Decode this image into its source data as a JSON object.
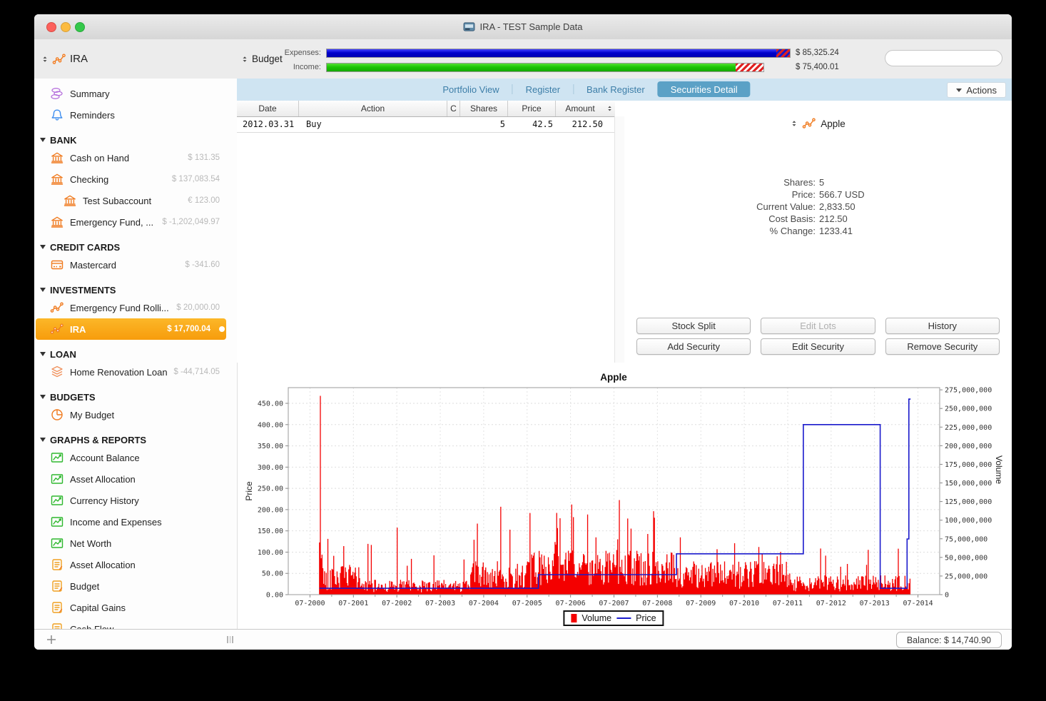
{
  "window": {
    "title": "IRA - TEST Sample Data"
  },
  "colors": {
    "selection_orange": "#f9a31a",
    "tab_selected_blue": "#5ba1c6",
    "chart_volume": "#f40000",
    "chart_price": "#1a1acc",
    "expenses_bar_blue": "#0000cc",
    "income_bar_green": "#1cc505"
  },
  "toolbar": {
    "account_label": "IRA",
    "budget_label": "Budget",
    "expenses_label": "Expenses:",
    "expenses_value": "$ 85,325.24",
    "income_label": "Income:",
    "income_value": "$ 75,400.01"
  },
  "sidebar": {
    "top_items": [
      {
        "label": "Summary",
        "icon": "coins-icon"
      },
      {
        "label": "Reminders",
        "icon": "bell-icon"
      }
    ],
    "sections": [
      {
        "title": "BANK",
        "items": [
          {
            "label": "Cash on Hand",
            "value": "$ 131.35",
            "icon": "bank-icon"
          },
          {
            "label": "Checking",
            "value": "$ 137,083.54",
            "icon": "bank-icon"
          },
          {
            "label": "Test Subaccount",
            "value": "€ 123.00",
            "icon": "bank-icon",
            "indent": true
          },
          {
            "label": "Emergency Fund, ...",
            "value": "$ -1,202,049.97",
            "icon": "bank-icon"
          }
        ]
      },
      {
        "title": "CREDIT CARDS",
        "items": [
          {
            "label": "Mastercard",
            "value": "$ -341.60",
            "icon": "credit-card-icon"
          }
        ]
      },
      {
        "title": "INVESTMENTS",
        "items": [
          {
            "label": "Emergency Fund Rolli...",
            "value": "$ 20,000.00",
            "icon": "investment-chart-icon"
          },
          {
            "label": "IRA",
            "value": "$ 17,700.04",
            "icon": "investment-chart-icon",
            "selected": true
          }
        ]
      },
      {
        "title": "LOAN",
        "items": [
          {
            "label": "Home Renovation Loan",
            "value": "$ -44,714.05",
            "icon": "layers-icon"
          }
        ]
      },
      {
        "title": "BUDGETS",
        "items": [
          {
            "label": "My Budget",
            "value": "",
            "icon": "pie-icon"
          }
        ]
      },
      {
        "title": "GRAPHS & REPORTS",
        "items": [
          {
            "label": "Account Balance",
            "icon": "graph-icon"
          },
          {
            "label": "Asset Allocation",
            "icon": "graph-icon"
          },
          {
            "label": "Currency History",
            "icon": "graph-icon"
          },
          {
            "label": "Income and Expenses",
            "icon": "graph-icon"
          },
          {
            "label": "Net Worth",
            "icon": "graph-icon"
          },
          {
            "label": "Asset Allocation",
            "icon": "report-icon"
          },
          {
            "label": "Budget",
            "icon": "report-icon"
          },
          {
            "label": "Capital Gains",
            "icon": "report-icon"
          },
          {
            "label": "Cash Flow",
            "icon": "report-icon",
            "clipped": true
          }
        ]
      }
    ]
  },
  "tabs": {
    "items": [
      "Portfolio View",
      "Register",
      "Bank Register",
      "Securities Detail"
    ],
    "selected": "Securities Detail",
    "actions_label": "Actions"
  },
  "table": {
    "columns": [
      "Date",
      "Action",
      "C",
      "Shares",
      "Price",
      "Amount"
    ],
    "rows": [
      {
        "date": "2012.03.31",
        "action": "Buy",
        "c": "",
        "shares": "5",
        "price": "42.5",
        "amount": "212.50"
      }
    ]
  },
  "security": {
    "name": "Apple",
    "details": [
      {
        "label": "Shares:",
        "value": "5"
      },
      {
        "label": "Price:",
        "value": "566.7 USD"
      },
      {
        "label": "Current Value:",
        "value": "2,833.50"
      },
      {
        "label": "Cost Basis:",
        "value": "212.50"
      },
      {
        "label": "% Change:",
        "value": "1233.41"
      }
    ],
    "buttons_row1": [
      {
        "label": "Stock Split",
        "disabled": false
      },
      {
        "label": "Edit Lots",
        "disabled": true
      },
      {
        "label": "History",
        "disabled": false
      }
    ],
    "buttons_row2": [
      {
        "label": "Add Security",
        "disabled": false
      },
      {
        "label": "Edit Security",
        "disabled": false
      },
      {
        "label": "Remove Security",
        "disabled": false
      }
    ]
  },
  "chart_data": {
    "type": "combo-bar-line",
    "title": "Apple",
    "grid": true,
    "legend_position": "bottom-center",
    "legend": [
      {
        "label": "Volume",
        "color": "#f40000",
        "type": "bar"
      },
      {
        "label": "Price",
        "color": "#1a1acc",
        "type": "line"
      }
    ],
    "x_axis": {
      "domain": [
        2000.0,
        2015.0
      ],
      "ticks": [
        [
          2000.5,
          "07-2000"
        ],
        [
          2001.5,
          "07-2001"
        ],
        [
          2002.5,
          "07-2002"
        ],
        [
          2003.5,
          "07-2003"
        ],
        [
          2004.5,
          "07-2004"
        ],
        [
          2005.5,
          "07-2005"
        ],
        [
          2006.5,
          "07-2006"
        ],
        [
          2007.5,
          "07-2007"
        ],
        [
          2008.5,
          "07-2008"
        ],
        [
          2009.5,
          "07-2009"
        ],
        [
          2010.5,
          "07-2010"
        ],
        [
          2011.5,
          "07-2011"
        ],
        [
          2012.5,
          "07-2012"
        ],
        [
          2013.5,
          "07-2013"
        ],
        [
          2014.5,
          "07-2014"
        ]
      ],
      "minor_ticks": [
        2001,
        2002,
        2003,
        2004,
        2005,
        2006,
        2007,
        2008,
        2009,
        2010,
        2011,
        2012,
        2013,
        2014
      ]
    },
    "price_axis": {
      "label": "Price",
      "min": 0,
      "max": 487,
      "ticks": [
        [
          0,
          "0.00"
        ],
        [
          50,
          "50.00"
        ],
        [
          100,
          "100.00"
        ],
        [
          150,
          "150.00"
        ],
        [
          200,
          "200.00"
        ],
        [
          250,
          "250.00"
        ],
        [
          300,
          "300.00"
        ],
        [
          350,
          "350.00"
        ],
        [
          400,
          "400.00"
        ],
        [
          450,
          "450.00"
        ]
      ]
    },
    "volume_axis": {
      "label": "Volume",
      "min": 0,
      "max": 278,
      "unit": "millions",
      "ticks": [
        [
          0,
          "0"
        ],
        [
          25,
          "25,000,000"
        ],
        [
          50,
          "50,000,000"
        ],
        [
          75,
          "75,000,000"
        ],
        [
          100,
          "100,000,000"
        ],
        [
          125,
          "125,000,000"
        ],
        [
          150,
          "150,000,000"
        ],
        [
          175,
          "175,000,000"
        ],
        [
          200,
          "200,000,000"
        ],
        [
          225,
          "225,000,000"
        ],
        [
          250,
          "250,000,000"
        ],
        [
          275,
          "275,000,000"
        ]
      ]
    },
    "price_line": [
      [
        2000.72,
        15
      ],
      [
        2005.76,
        15
      ],
      [
        2005.76,
        47
      ],
      [
        2008.94,
        47
      ],
      [
        2008.94,
        96
      ],
      [
        2011.86,
        96
      ],
      [
        2011.86,
        400
      ],
      [
        2013.63,
        400
      ],
      [
        2013.63,
        15
      ],
      [
        2014.25,
        15
      ],
      [
        2014.25,
        131
      ],
      [
        2014.29,
        131
      ],
      [
        2014.29,
        460
      ],
      [
        2014.33,
        460
      ]
    ],
    "volume_bars": {
      "start": 2000.72,
      "end": 2014.32,
      "step": 0.019231,
      "seed": 42,
      "unit": "millions",
      "eras": [
        {
          "from": 2000.7,
          "to": 2000.78,
          "base": [
            40,
            90
          ],
          "spike_prob": 0.0,
          "spike": [
            0,
            0
          ]
        },
        {
          "from": 2000.78,
          "to": 2001.7,
          "base": [
            6,
            40
          ],
          "spike_prob": 0.07,
          "spike": [
            50,
            92
          ]
        },
        {
          "from": 2001.7,
          "to": 2004.2,
          "base": [
            3,
            20
          ],
          "spike_prob": 0.05,
          "spike": [
            35,
            80
          ]
        },
        {
          "from": 2004.2,
          "to": 2005.6,
          "base": [
            8,
            45
          ],
          "spike_prob": 0.09,
          "spike": [
            55,
            110
          ]
        },
        {
          "from": 2005.6,
          "to": 2008.9,
          "base": [
            12,
            60
          ],
          "spike_prob": 0.11,
          "spike": [
            65,
            125
          ]
        },
        {
          "from": 2008.9,
          "to": 2011.6,
          "base": [
            8,
            45
          ],
          "spike_prob": 0.07,
          "spike": [
            50,
            88
          ]
        },
        {
          "from": 2011.6,
          "to": 2014.33,
          "base": [
            4,
            26
          ],
          "spike_prob": 0.05,
          "spike": [
            35,
            68
          ]
        }
      ],
      "events": [
        {
          "x": 2000.73,
          "v": 267
        },
        {
          "x": 2002.5,
          "v": 90
        },
        {
          "x": 2004.9,
          "v": 118
        },
        {
          "x": 2006.52,
          "v": 121
        },
        {
          "x": 2007.62,
          "v": 127
        },
        {
          "x": 2008.42,
          "v": 112
        },
        {
          "x": 2012.25,
          "v": 62
        }
      ]
    }
  },
  "statusbar": {
    "balance": "Balance: $ 14,740.90"
  }
}
